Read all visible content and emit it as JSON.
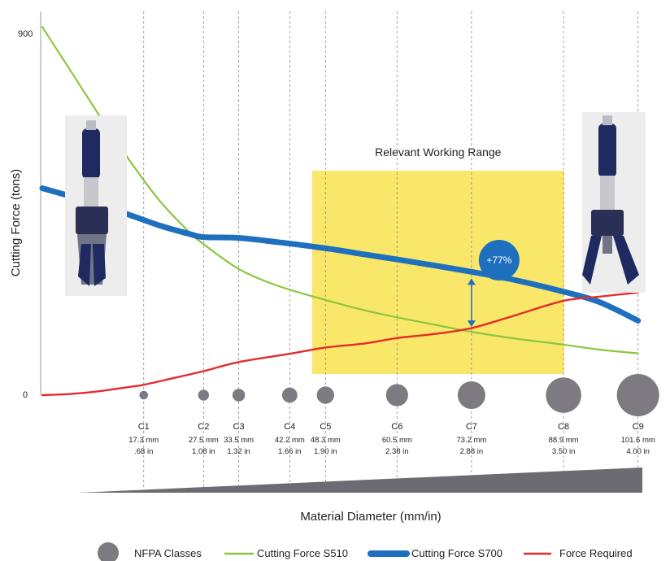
{
  "chart_data": {
    "type": "line",
    "title": "",
    "ylabel": "Cutting Force (tons)",
    "xlabel": "Material Diameter (mm/in)",
    "ylim": [
      0,
      900
    ],
    "yticks": [
      "0",
      "900"
    ],
    "xlim": [
      0,
      104
    ],
    "grid": "vertical dashed lines at each NFPA class",
    "highlight": {
      "label": "Relevant Working Range",
      "x_from": 46,
      "x_to": 89,
      "color": "#f9e769"
    },
    "annotation": {
      "label": "+77%",
      "x": 73.2,
      "color": "#1f6fbf"
    },
    "classes": [
      {
        "name": "C1",
        "mm": "17.3 mm",
        "in": ".68 in",
        "x": 17.3
      },
      {
        "name": "C2",
        "mm": "27.5 mm",
        "in": "1.08 in",
        "x": 27.5
      },
      {
        "name": "C3",
        "mm": "33.5 mm",
        "in": "1.32 in",
        "x": 33.5
      },
      {
        "name": "C4",
        "mm": "42.2 mm",
        "in": "1.66 in",
        "x": 42.2
      },
      {
        "name": "C5",
        "mm": "48.3 mm",
        "in": "1.90 in",
        "x": 48.3
      },
      {
        "name": "C6",
        "mm": "60.5 mm",
        "in": "2.38 in",
        "x": 60.5
      },
      {
        "name": "C7",
        "mm": "73.2 mm",
        "in": "2.88 in",
        "x": 73.2
      },
      {
        "name": "C8",
        "mm": "88.9 mm",
        "in": "3.50 in",
        "x": 88.9
      },
      {
        "name": "C9",
        "mm": "101.6 mm",
        "in": "4.00 in",
        "x": 101.6
      }
    ],
    "series": [
      {
        "name": "Cutting Force S510",
        "color": "#8cc63f",
        "points": [
          [
            0,
            890
          ],
          [
            5,
            780
          ],
          [
            10,
            670
          ],
          [
            15,
            565
          ],
          [
            20,
            470
          ],
          [
            25,
            395
          ],
          [
            27.5,
            365
          ],
          [
            33.5,
            305
          ],
          [
            40,
            265
          ],
          [
            48.3,
            230
          ],
          [
            55,
            205
          ],
          [
            60.5,
            188
          ],
          [
            67,
            170
          ],
          [
            73.2,
            153
          ],
          [
            80,
            138
          ],
          [
            88.9,
            122
          ],
          [
            95,
            110
          ],
          [
            101.6,
            101
          ]
        ]
      },
      {
        "name": "Cutting Force S700",
        "color": "#1f6fbf",
        "points": [
          [
            0,
            500
          ],
          [
            5,
            480
          ],
          [
            10,
            458
          ],
          [
            15,
            435
          ],
          [
            20,
            410
          ],
          [
            25,
            390
          ],
          [
            27.5,
            382
          ],
          [
            33.5,
            380
          ],
          [
            40,
            370
          ],
          [
            48.3,
            355
          ],
          [
            55,
            340
          ],
          [
            60.5,
            328
          ],
          [
            67,
            313
          ],
          [
            73.2,
            298
          ],
          [
            80,
            280
          ],
          [
            88.9,
            250
          ],
          [
            95,
            225
          ],
          [
            101.6,
            180
          ]
        ]
      },
      {
        "name": "Force Required",
        "color": "#e42c2c",
        "points": [
          [
            0,
            0
          ],
          [
            5,
            3
          ],
          [
            10,
            10
          ],
          [
            15,
            20
          ],
          [
            17.3,
            25
          ],
          [
            22,
            40
          ],
          [
            27.5,
            58
          ],
          [
            33.5,
            80
          ],
          [
            42.2,
            100
          ],
          [
            48.3,
            115
          ],
          [
            55,
            125
          ],
          [
            60.5,
            138
          ],
          [
            67,
            148
          ],
          [
            73.2,
            162
          ],
          [
            80,
            190
          ],
          [
            88.9,
            228
          ],
          [
            95,
            238
          ],
          [
            101.6,
            248
          ]
        ]
      }
    ],
    "legend": {
      "position": "bottom",
      "items": [
        {
          "label": "NFPA Classes",
          "kind": "circle",
          "color": "#7d7b81"
        },
        {
          "label": "Cutting Force S510",
          "kind": "line",
          "color": "#8cc63f"
        },
        {
          "label": "Cutting Force S700",
          "kind": "thick-line",
          "color": "#1f6fbf"
        },
        {
          "label": "Force Required",
          "kind": "line",
          "color": "#e42c2c"
        }
      ]
    },
    "images": [
      {
        "name": "cutter-closed-photo"
      },
      {
        "name": "cutter-open-photo"
      }
    ]
  }
}
